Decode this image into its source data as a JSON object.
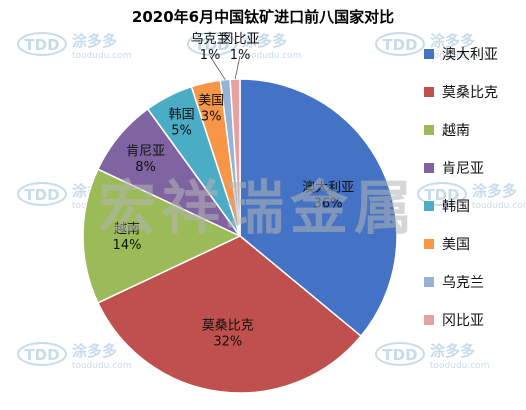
{
  "chart_data": {
    "type": "pie",
    "title": "2020年6月中国钛矿进口前八国家对比",
    "unit": "%",
    "slices": [
      {
        "label": "澳大利亚",
        "value": 36,
        "color": "#4472C4"
      },
      {
        "label": "莫桑比克",
        "value": 32,
        "color": "#C0504D"
      },
      {
        "label": "越南",
        "value": 14,
        "color": "#9BBB59"
      },
      {
        "label": "肯尼亚",
        "value": 8,
        "color": "#8064A2"
      },
      {
        "label": "韩国",
        "value": 5,
        "color": "#4BACC6"
      },
      {
        "label": "美国",
        "value": 3,
        "color": "#F79646"
      },
      {
        "label": "乌克兰",
        "value": 1,
        "color": "#95B3D7"
      },
      {
        "label": "冈比亚",
        "value": 1,
        "color": "#E6A1A1"
      }
    ],
    "legend_position": "right"
  },
  "watermarks": {
    "center": "宏祥瑞金属",
    "logo_text": "TDD",
    "brand_cn": "涂多多",
    "brand_url": "toodudu.com",
    "center_color": "#b5b5b5",
    "logo_color": "#9bbfdb"
  }
}
